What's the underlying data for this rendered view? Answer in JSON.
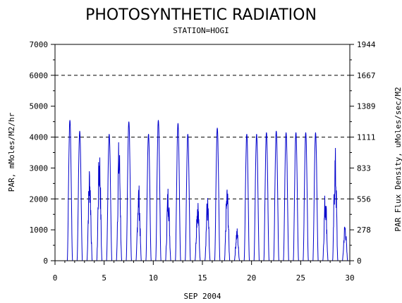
{
  "chart_data": {
    "type": "line",
    "title": "PHOTOSYNTHETIC RADIATION",
    "subtitle": "STATION=HOGI",
    "xlabel": "SEP 2004",
    "ylabel": "PAR, mMoles/M2/hr",
    "y2label": "PAR Flux Density, uMoles/sec/M2",
    "xlim": [
      0,
      30
    ],
    "ylim": [
      0,
      7000
    ],
    "x_ticks": [
      0,
      5,
      10,
      15,
      20,
      25,
      30
    ],
    "y_ticks": [
      0,
      1000,
      2000,
      3000,
      4000,
      5000,
      6000,
      7000
    ],
    "y2_ticks": [
      "0",
      "278",
      "556",
      "833",
      "1111",
      "1389",
      "1667",
      "1944"
    ],
    "gridlines_dashed": [
      2000,
      4000,
      6000
    ],
    "series_color": "#0000cc",
    "daily_peaks": [
      {
        "day": 1,
        "peak": 4550,
        "shape": "clear"
      },
      {
        "day": 2,
        "peak": 4200,
        "shape": "clear"
      },
      {
        "day": 3,
        "peak": 3250,
        "shape": "cloudy"
      },
      {
        "day": 4,
        "peak": 3900,
        "shape": "cloudy"
      },
      {
        "day": 5,
        "peak": 4100,
        "shape": "clear"
      },
      {
        "day": 6,
        "peak": 4100,
        "shape": "cloudy"
      },
      {
        "day": 7,
        "peak": 4500,
        "shape": "clear"
      },
      {
        "day": 8,
        "peak": 2600,
        "shape": "cloudy"
      },
      {
        "day": 9,
        "peak": 4100,
        "shape": "clear"
      },
      {
        "day": 10,
        "peak": 4550,
        "shape": "clear"
      },
      {
        "day": 11,
        "peak": 2550,
        "shape": "cloudy"
      },
      {
        "day": 12,
        "peak": 4450,
        "shape": "clear"
      },
      {
        "day": 13,
        "peak": 4100,
        "shape": "clear"
      },
      {
        "day": 14,
        "peak": 2200,
        "shape": "cloudy"
      },
      {
        "day": 15,
        "peak": 2150,
        "shape": "cloudy"
      },
      {
        "day": 16,
        "peak": 4300,
        "shape": "clear"
      },
      {
        "day": 17,
        "peak": 2550,
        "shape": "cloudy"
      },
      {
        "day": 18,
        "peak": 1100,
        "shape": "cloudy"
      },
      {
        "day": 19,
        "peak": 4100,
        "shape": "clear"
      },
      {
        "day": 20,
        "peak": 4100,
        "shape": "clear"
      },
      {
        "day": 21,
        "peak": 4150,
        "shape": "clear"
      },
      {
        "day": 22,
        "peak": 4200,
        "shape": "clear"
      },
      {
        "day": 23,
        "peak": 4150,
        "shape": "clear"
      },
      {
        "day": 24,
        "peak": 4150,
        "shape": "clear"
      },
      {
        "day": 25,
        "peak": 4150,
        "shape": "clear"
      },
      {
        "day": 26,
        "peak": 4150,
        "shape": "clear"
      },
      {
        "day": 27,
        "peak": 2450,
        "shape": "cloudy"
      },
      {
        "day": 28,
        "peak": 3750,
        "shape": "cloudy"
      },
      {
        "day": 29,
        "peak": 1300,
        "shape": "cloudy"
      }
    ]
  }
}
